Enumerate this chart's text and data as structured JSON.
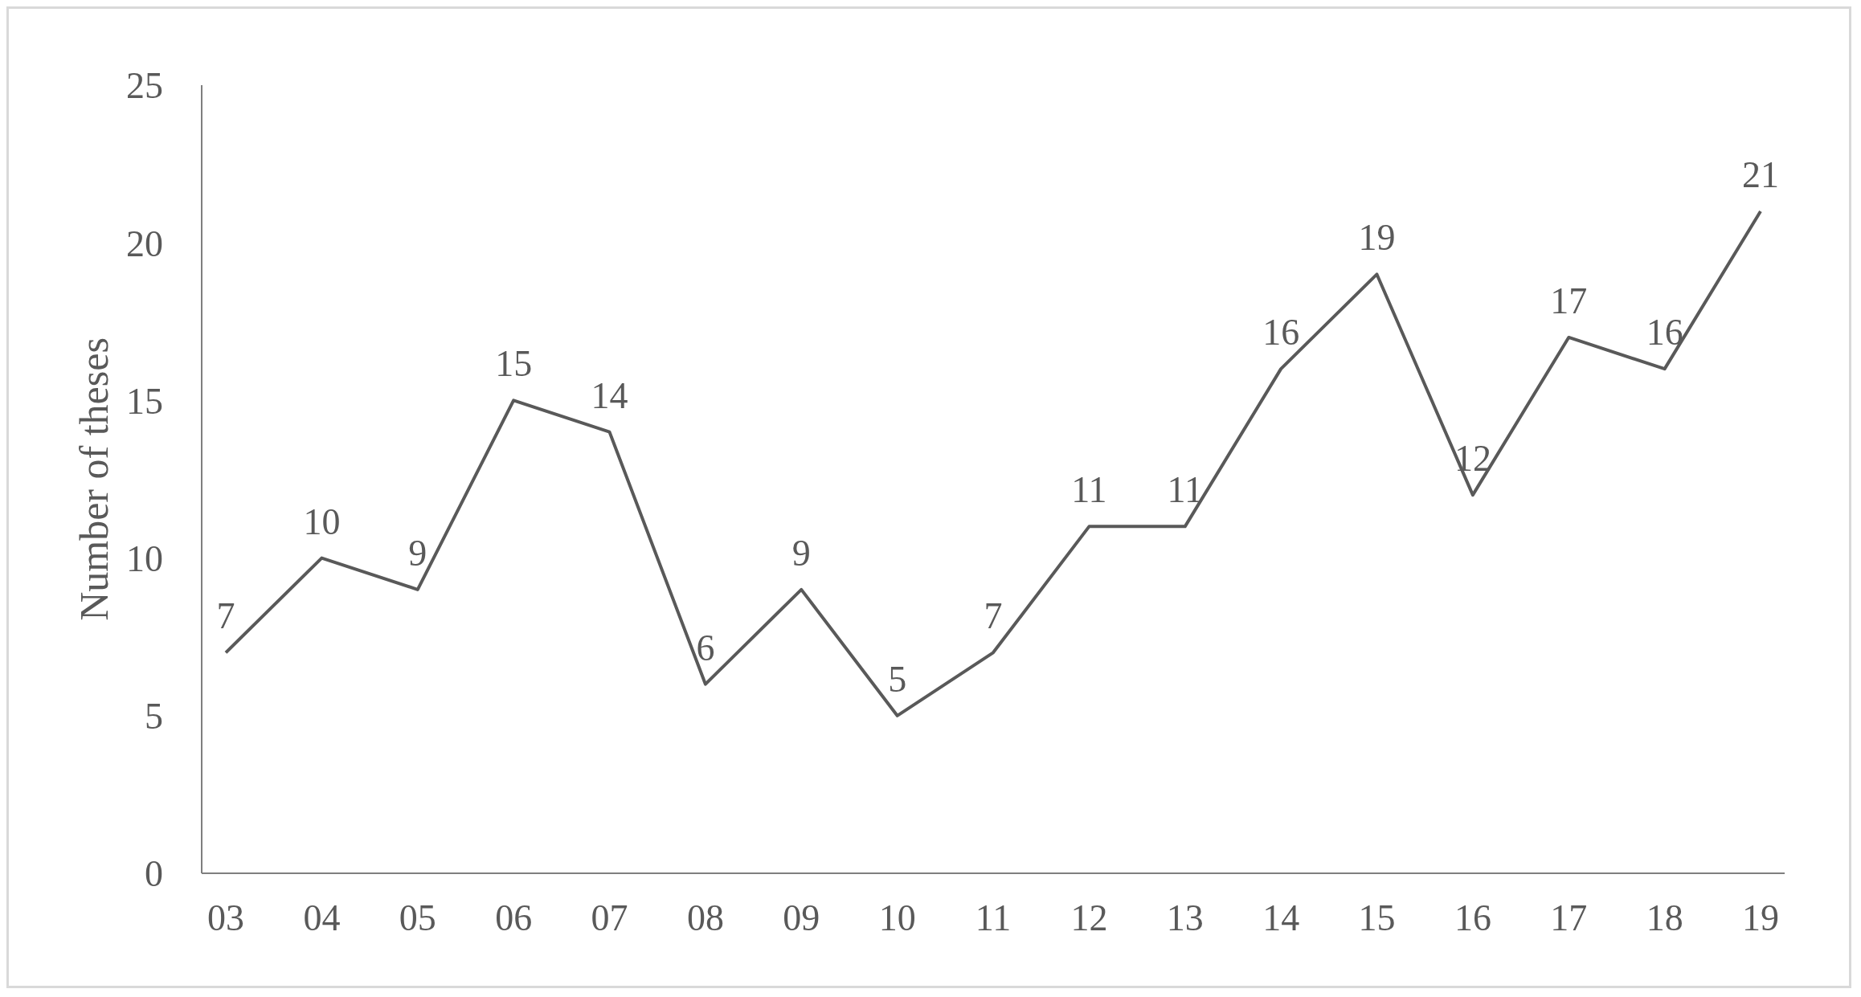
{
  "chart_data": {
    "type": "line",
    "ylabel": "Number of theses",
    "categories": [
      "03",
      "04",
      "05",
      "06",
      "07",
      "08",
      "09",
      "10",
      "11",
      "12",
      "13",
      "14",
      "15",
      "16",
      "17",
      "18",
      "19"
    ],
    "values": [
      7,
      10,
      9,
      15,
      14,
      6,
      9,
      5,
      7,
      11,
      11,
      16,
      19,
      12,
      17,
      16,
      21
    ],
    "color": "#595959",
    "ylim": [
      0,
      25
    ],
    "yticks": [
      0,
      5,
      10,
      15,
      20,
      25
    ],
    "grid": false,
    "marker": "none",
    "line_style": "solid",
    "data_labels": true
  }
}
